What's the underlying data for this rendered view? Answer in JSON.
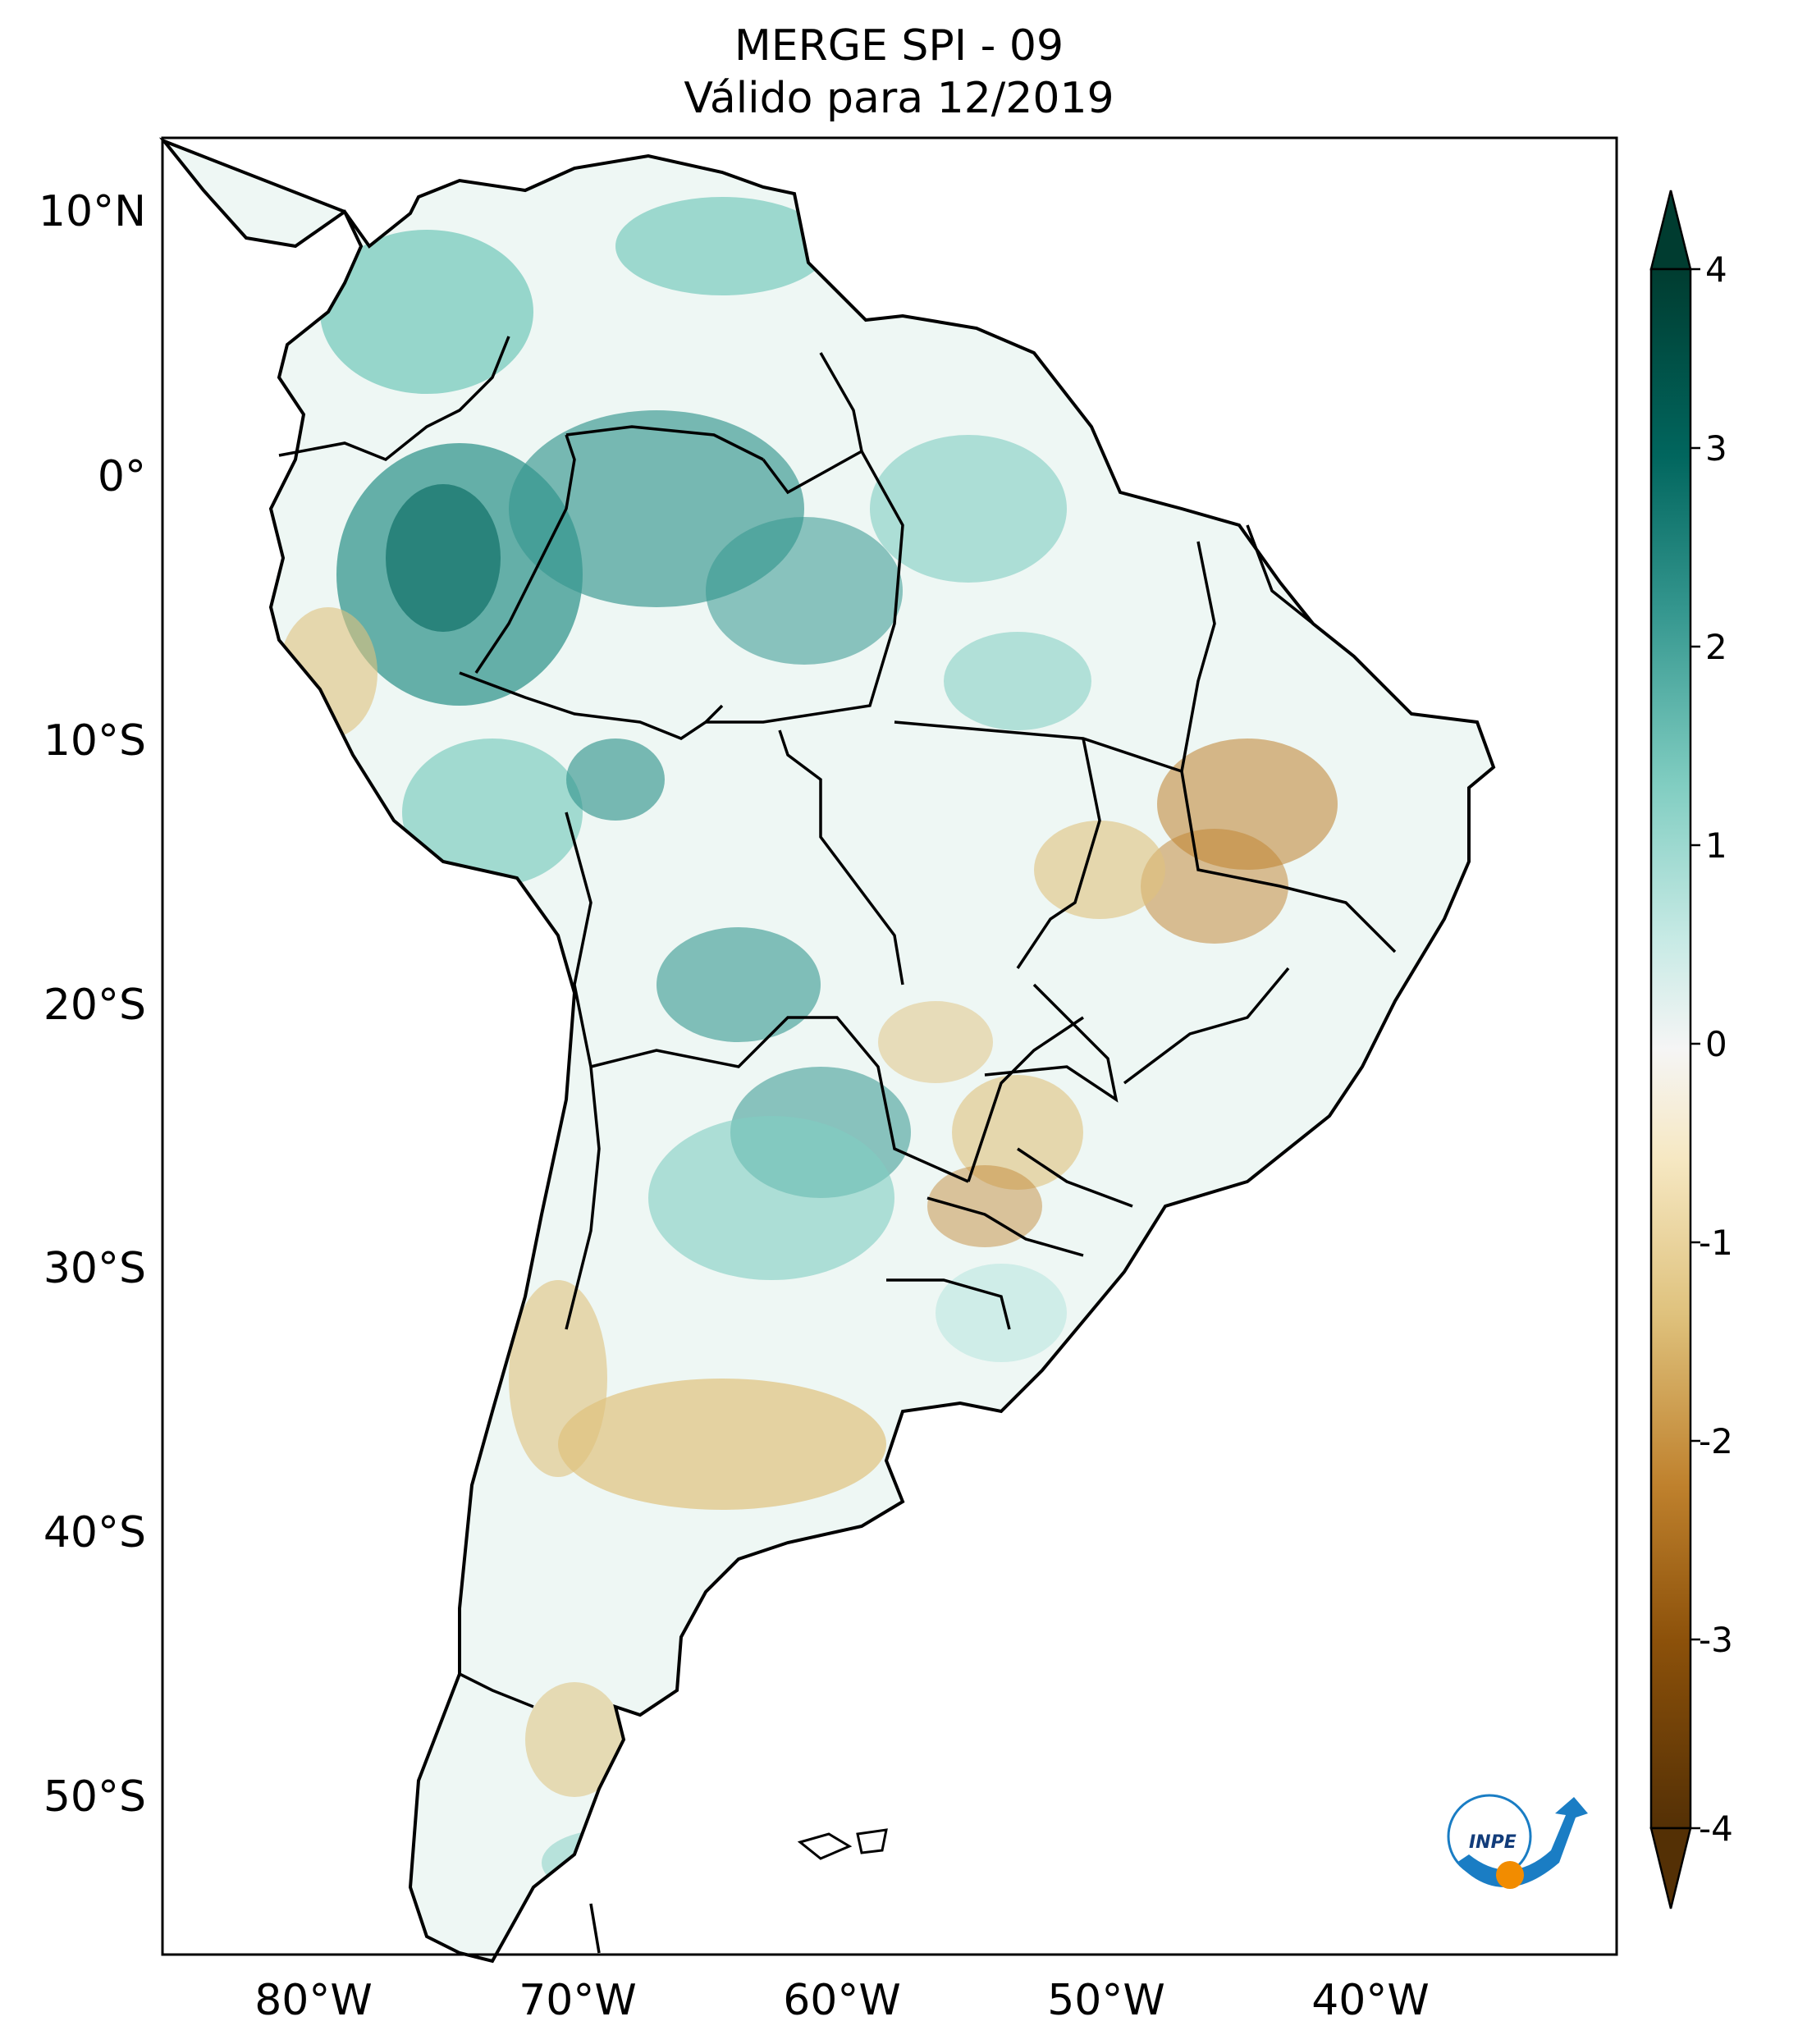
{
  "title": {
    "line1": "MERGE   SPI - 09",
    "line2": "Válido para 12/2019"
  },
  "lat_labels": [
    "10°N",
    "0°",
    "10°S",
    "20°S",
    "30°S",
    "40°S",
    "50°S"
  ],
  "lon_labels": [
    "80°W",
    "70°W",
    "60°W",
    "50°W",
    "40°W"
  ],
  "colorbar": {
    "ticks": [
      "4",
      "3",
      "2",
      "1",
      "0",
      "-1",
      "-2",
      "-3",
      "-4"
    ],
    "colors": {
      "wet_max": "#003c30",
      "wet_high": "#01665e",
      "wet_mid": "#35978f",
      "wet_low": "#80cdc1",
      "wet_faint": "#c7eae5",
      "neutral": "#f5f5f5",
      "dry_faint": "#f6e8c3",
      "dry_low": "#dfc27d",
      "dry_mid": "#bf812d",
      "dry_high": "#8c510a",
      "dry_max": "#543005"
    }
  },
  "logo": {
    "text": "INPE",
    "colors": {
      "arrow": "#1a7dc4",
      "dot": "#f28c00"
    }
  }
}
